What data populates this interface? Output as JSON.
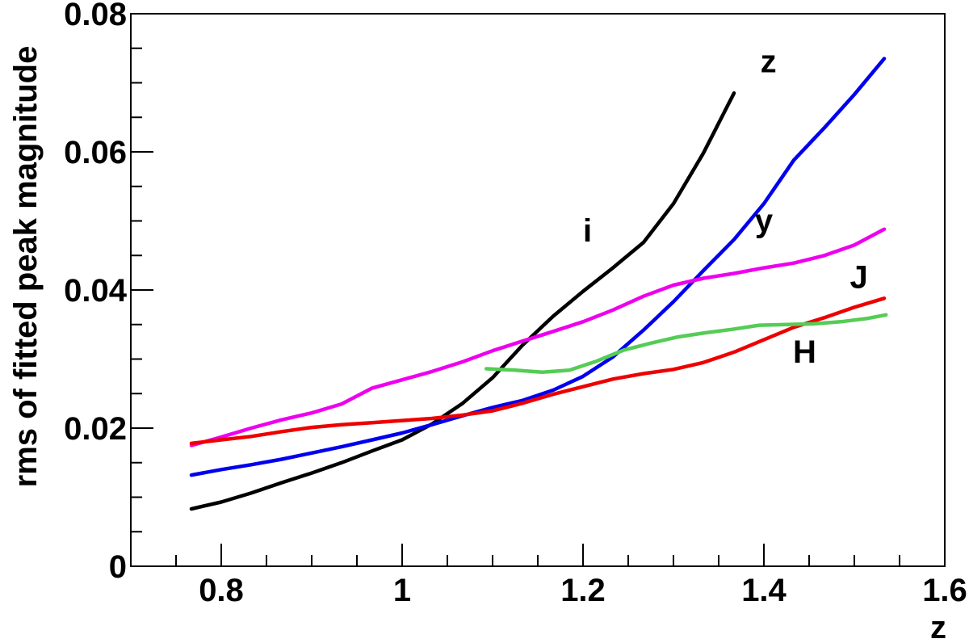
{
  "chart_data": {
    "type": "line",
    "title": "",
    "xlabel": "z",
    "ylabel": "rms of fitted peak magnitude",
    "xlim": [
      0.7,
      1.6
    ],
    "ylim": [
      0,
      0.08
    ],
    "grid": false,
    "legend": "none",
    "x_ticks": [
      {
        "value": 0.8,
        "label": "0.8"
      },
      {
        "value": 1.0,
        "label": "1"
      },
      {
        "value": 1.2,
        "label": "1.2"
      },
      {
        "value": 1.4,
        "label": "1.4"
      },
      {
        "value": 1.6,
        "label": "1.6"
      }
    ],
    "y_ticks": [
      {
        "value": 0,
        "label": "0"
      },
      {
        "value": 0.02,
        "label": "0.02"
      },
      {
        "value": 0.04,
        "label": "0.04"
      },
      {
        "value": 0.06,
        "label": "0.06"
      },
      {
        "value": 0.08,
        "label": "0.08"
      }
    ],
    "series": [
      {
        "label": "i",
        "color": "#000000",
        "label_x": 1.205,
        "label_y": 0.047,
        "x": [
          0.767,
          0.8,
          0.833,
          0.867,
          0.9,
          0.933,
          0.967,
          1.0,
          1.033,
          1.067,
          1.1,
          1.133,
          1.167,
          1.2,
          1.233,
          1.267,
          1.3,
          1.333,
          1.367
        ],
        "y": [
          0.0083,
          0.0093,
          0.0106,
          0.0121,
          0.0135,
          0.015,
          0.0167,
          0.0183,
          0.0206,
          0.0236,
          0.0273,
          0.032,
          0.0362,
          0.0398,
          0.0432,
          0.0469,
          0.0525,
          0.0598,
          0.0685
        ]
      },
      {
        "label": "z",
        "color": "#0000ee",
        "label_x": 1.405,
        "label_y": 0.0715,
        "x": [
          0.767,
          0.8,
          0.833,
          0.867,
          0.9,
          0.933,
          0.967,
          1.0,
          1.033,
          1.067,
          1.1,
          1.133,
          1.167,
          1.2,
          1.233,
          1.267,
          1.3,
          1.333,
          1.367,
          1.4,
          1.433,
          1.467,
          1.5,
          1.533
        ],
        "y": [
          0.0132,
          0.014,
          0.0147,
          0.0155,
          0.0164,
          0.0173,
          0.0183,
          0.0193,
          0.0205,
          0.0218,
          0.023,
          0.024,
          0.0255,
          0.0275,
          0.0303,
          0.0342,
          0.0383,
          0.0428,
          0.0473,
          0.0525,
          0.0588,
          0.0635,
          0.0683,
          0.0735
        ]
      },
      {
        "label": "y",
        "color": "#ee00ee",
        "label_x": 1.4,
        "label_y": 0.0485,
        "x": [
          0.767,
          0.8,
          0.833,
          0.867,
          0.9,
          0.933,
          0.967,
          1.0,
          1.033,
          1.067,
          1.1,
          1.133,
          1.167,
          1.2,
          1.233,
          1.267,
          1.3,
          1.333,
          1.367,
          1.4,
          1.433,
          1.467,
          1.5,
          1.533
        ],
        "y": [
          0.0175,
          0.0187,
          0.02,
          0.0212,
          0.0222,
          0.0235,
          0.0258,
          0.027,
          0.0282,
          0.0296,
          0.0312,
          0.0326,
          0.034,
          0.0354,
          0.0371,
          0.0391,
          0.0407,
          0.0417,
          0.0424,
          0.0432,
          0.0439,
          0.045,
          0.0465,
          0.0488
        ]
      },
      {
        "label": "J",
        "color": "#ee0000",
        "label_x": 1.505,
        "label_y": 0.0403,
        "x": [
          0.767,
          0.8,
          0.833,
          0.867,
          0.9,
          0.933,
          0.967,
          1.0,
          1.033,
          1.067,
          1.1,
          1.133,
          1.167,
          1.2,
          1.233,
          1.267,
          1.3,
          1.333,
          1.367,
          1.4,
          1.433,
          1.467,
          1.5,
          1.533
        ],
        "y": [
          0.0178,
          0.0183,
          0.0188,
          0.0195,
          0.0201,
          0.0205,
          0.0208,
          0.0211,
          0.0214,
          0.0219,
          0.0225,
          0.0236,
          0.0249,
          0.026,
          0.0271,
          0.0279,
          0.0285,
          0.0295,
          0.031,
          0.0328,
          0.0346,
          0.036,
          0.0375,
          0.0388
        ]
      },
      {
        "label": "H",
        "color": "#55cc55",
        "label_x": 1.445,
        "label_y": 0.0295,
        "x": [
          1.093,
          1.125,
          1.155,
          1.185,
          1.215,
          1.245,
          1.275,
          1.305,
          1.335,
          1.365,
          1.395,
          1.425,
          1.455,
          1.485,
          1.515,
          1.535
        ],
        "y": [
          0.0286,
          0.0284,
          0.0281,
          0.0284,
          0.0297,
          0.0313,
          0.0323,
          0.0332,
          0.0338,
          0.0343,
          0.0349,
          0.035,
          0.0351,
          0.0354,
          0.0359,
          0.0364
        ]
      }
    ]
  }
}
